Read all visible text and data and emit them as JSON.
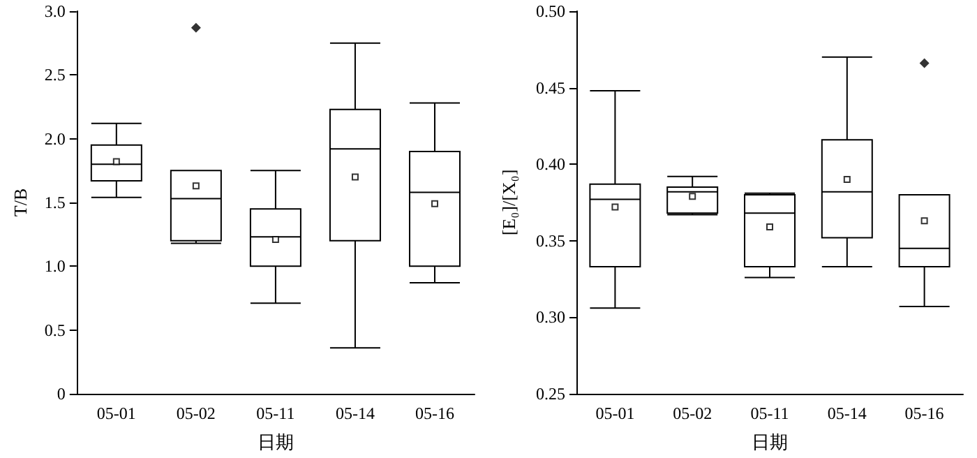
{
  "chart_data": [
    {
      "type": "box",
      "xlabel": "日期",
      "ylabel": "T/B",
      "categories": [
        "05-01",
        "05-02",
        "05-11",
        "05-14",
        "05-16"
      ],
      "boxes": [
        {
          "low": 1.54,
          "q1": 1.67,
          "median": 1.8,
          "q3": 1.95,
          "high": 2.12,
          "mean": 1.82
        },
        {
          "low": 1.18,
          "q1": 1.2,
          "median": 1.53,
          "q3": 1.75,
          "high": 1.75,
          "mean": 1.63,
          "outliers": [
            2.87
          ]
        },
        {
          "low": 0.71,
          "q1": 1.0,
          "median": 1.23,
          "q3": 1.45,
          "high": 1.75,
          "mean": 1.21
        },
        {
          "low": 0.36,
          "q1": 1.2,
          "median": 1.92,
          "q3": 2.23,
          "high": 2.75,
          "mean": 1.7
        },
        {
          "low": 0.87,
          "q1": 1.0,
          "median": 1.58,
          "q3": 1.9,
          "high": 2.28,
          "mean": 1.49
        }
      ],
      "ylim": [
        0,
        3
      ],
      "yticks": [
        0,
        {
          "value": 0.5,
          "label": "0.5"
        },
        {
          "value": 1,
          "label": "1.0"
        },
        {
          "value": 1.5,
          "label": "1.5"
        },
        {
          "value": 2,
          "label": "2.0"
        },
        {
          "value": 2.5,
          "label": "2.5"
        },
        {
          "value": 3,
          "label": "3.0"
        }
      ],
      "grid": false
    },
    {
      "type": "box",
      "xlabel": "日期",
      "ylabel": "[E₀]/[X₀]",
      "categories": [
        "05-01",
        "05-02",
        "05-11",
        "05-14",
        "05-16"
      ],
      "boxes": [
        {
          "low": 0.306,
          "q1": 0.333,
          "median": 0.377,
          "q3": 0.387,
          "high": 0.448,
          "mean": 0.372
        },
        {
          "low": 0.367,
          "q1": 0.368,
          "median": 0.382,
          "q3": 0.385,
          "high": 0.392,
          "mean": 0.379
        },
        {
          "low": 0.326,
          "q1": 0.333,
          "median": 0.368,
          "q3": 0.38,
          "high": 0.381,
          "mean": 0.359
        },
        {
          "low": 0.333,
          "q1": 0.352,
          "median": 0.382,
          "q3": 0.416,
          "high": 0.47,
          "mean": 0.39
        },
        {
          "low": 0.307,
          "q1": 0.333,
          "median": 0.345,
          "q3": 0.38,
          "high": 0.38,
          "mean": 0.363,
          "outliers": [
            0.466
          ]
        }
      ],
      "ylim": [
        0.25,
        0.5
      ],
      "yticks": [
        {
          "value": 0.25,
          "label": "0.25"
        },
        {
          "value": 0.3,
          "label": "0.30"
        },
        {
          "value": 0.35,
          "label": "0.35"
        },
        {
          "value": 0.4,
          "label": "0.40"
        },
        {
          "value": 0.45,
          "label": "0.45"
        },
        {
          "value": 0.5,
          "label": "0.50"
        }
      ],
      "grid": false
    }
  ]
}
